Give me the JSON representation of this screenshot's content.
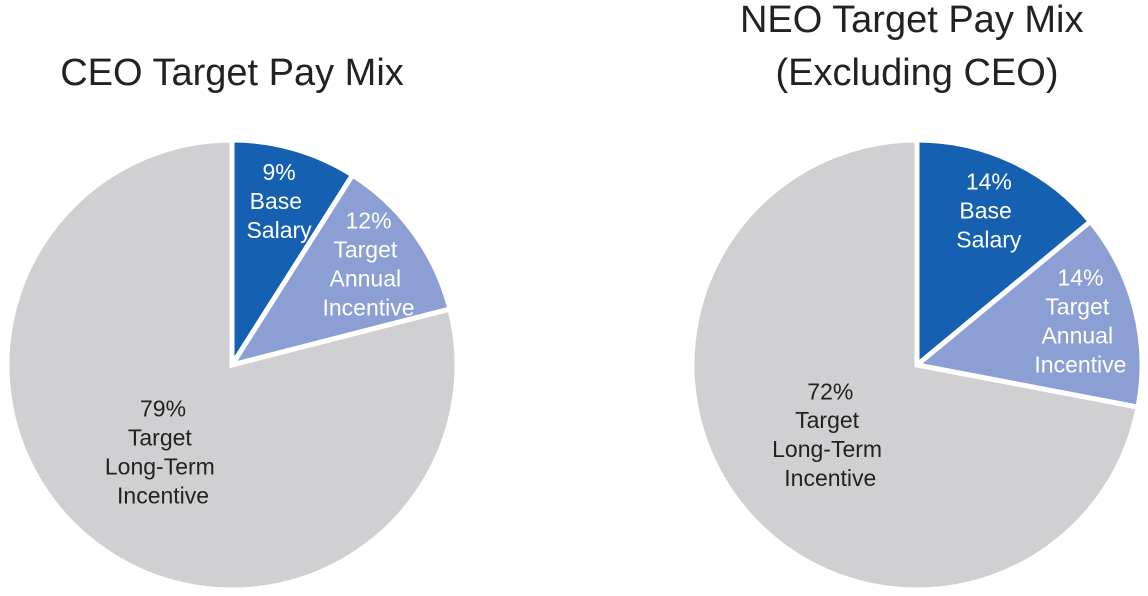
{
  "chart_data": [
    {
      "type": "pie",
      "title": "CEO Target Pay Mix",
      "categories": [
        "Base Salary",
        "Target Annual Incentive",
        "Target Long-Term Incentive"
      ],
      "values": [
        9,
        12,
        79
      ],
      "value_labels": [
        "9%",
        "12%",
        "79%"
      ],
      "colors": [
        "#1560b0",
        "#8c9fd4",
        "#d0d0d2"
      ]
    },
    {
      "type": "pie",
      "title": "NEO Target Pay Mix\n(Excluding CEO)",
      "categories": [
        "Base Salary",
        "Target Annual Incentive",
        "Target Long-Term Incentive"
      ],
      "values": [
        14,
        14,
        72
      ],
      "value_labels": [
        "14%",
        "14%",
        "72%"
      ],
      "colors": [
        "#1560b0",
        "#8c9fd4",
        "#d0d0d2"
      ]
    }
  ]
}
